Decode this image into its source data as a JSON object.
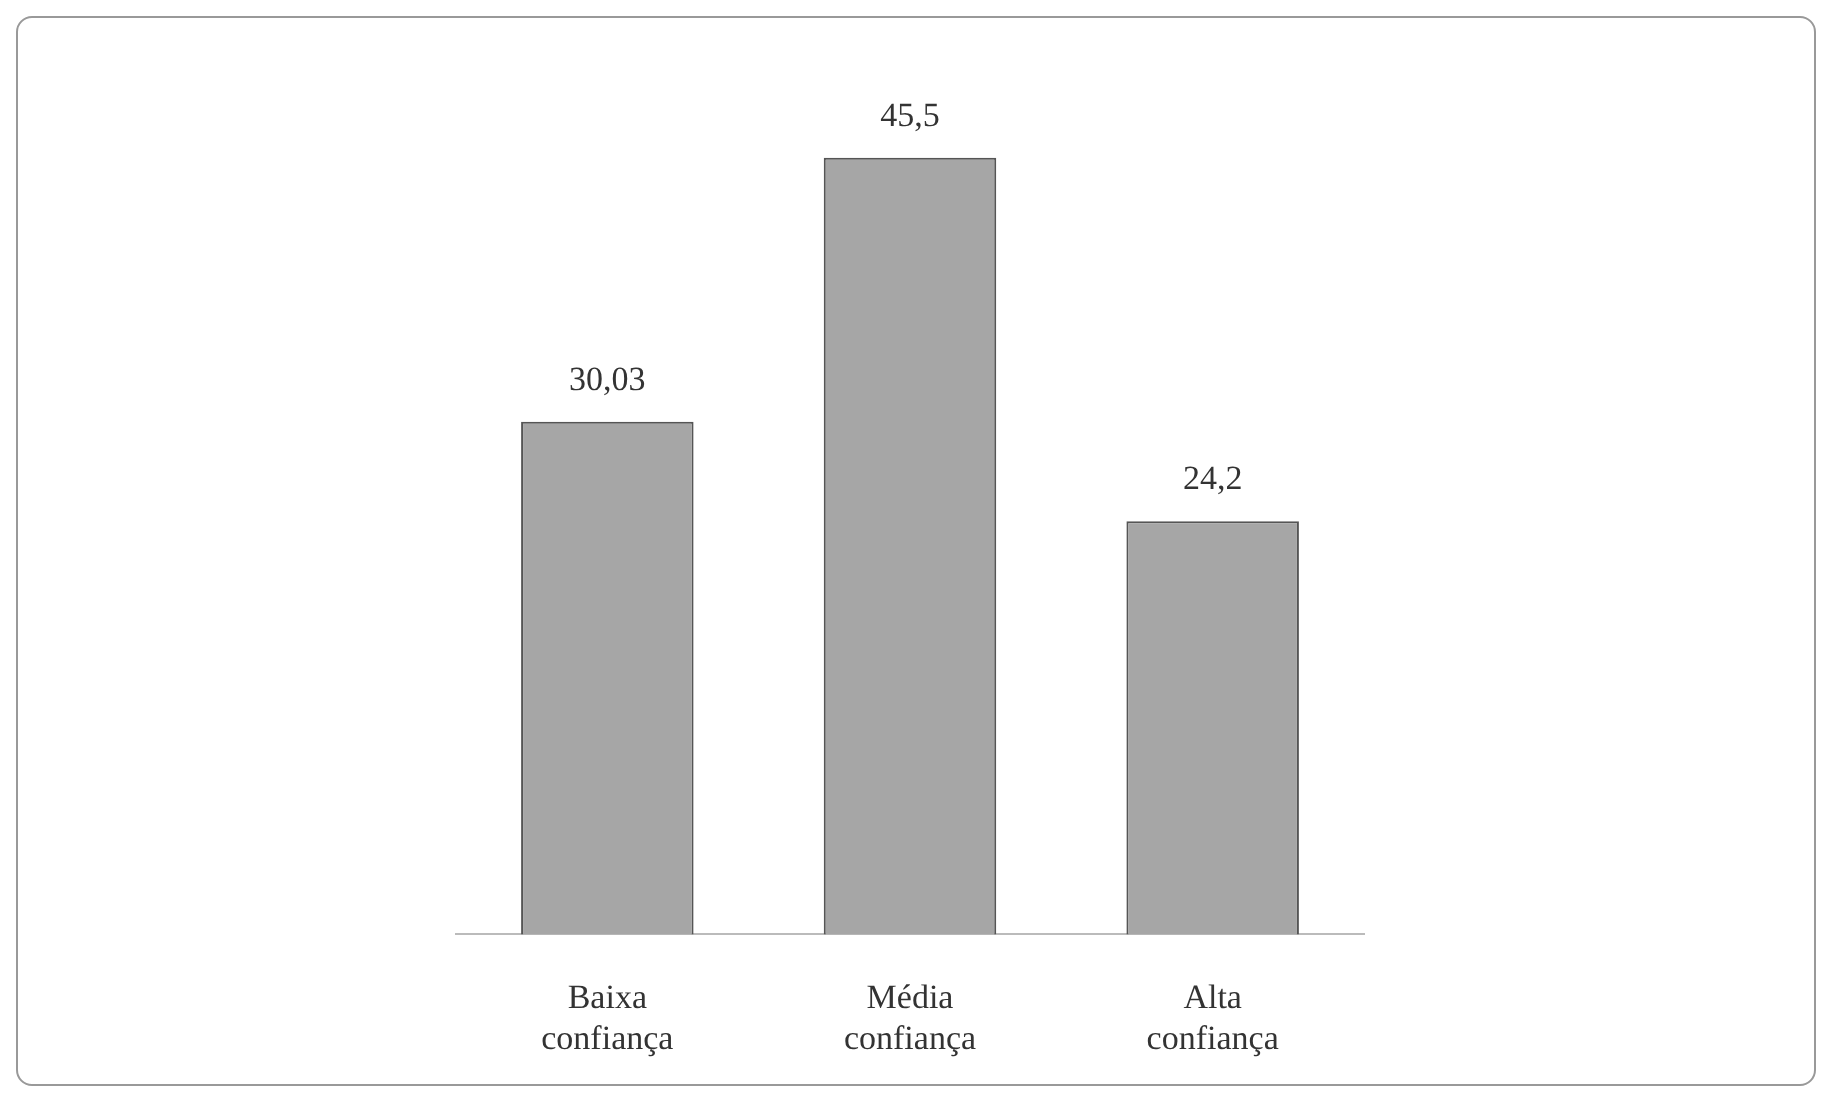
{
  "chart_data": {
    "type": "bar",
    "categories": [
      "Baixa confiança",
      "Média confiança",
      "Alta confiança"
    ],
    "values": [
      30.03,
      45.5,
      24.2
    ],
    "value_labels": [
      "30,03",
      "45,5",
      "24,2"
    ],
    "color": "#a6a6a6",
    "grid": false,
    "legend": false
  }
}
